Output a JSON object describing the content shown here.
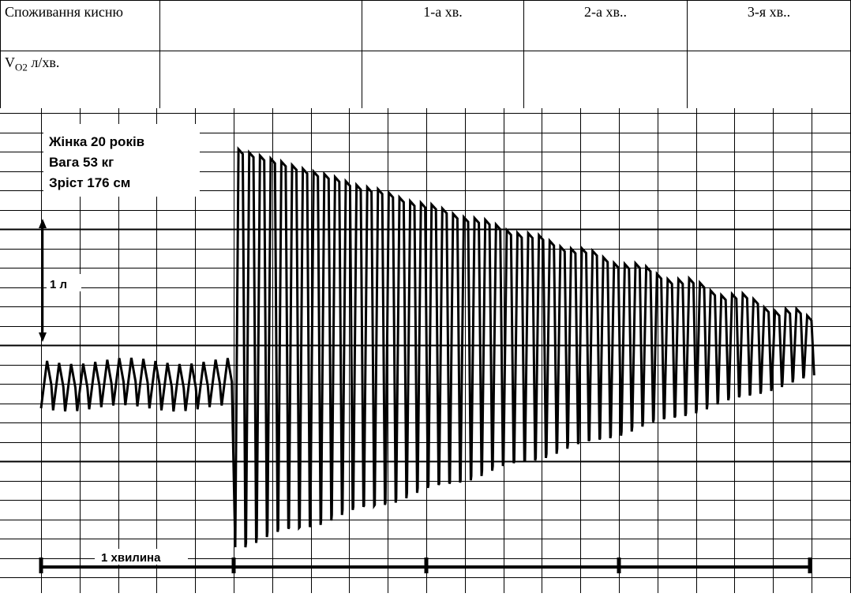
{
  "table": {
    "row1": {
      "label": "Споживання кисню",
      "col2": "",
      "col3": "1-а хв.",
      "col4": "2-а хв..",
      "col5": "3-я хв.."
    },
    "row2": {
      "label_main": "V",
      "label_sub": "O2",
      "label_unit": " л/хв.",
      "col2": "",
      "col3": "",
      "col4": "",
      "col5": ""
    }
  },
  "spirogram": {
    "subject_lines": [
      "Жінка 20 років",
      "Вага 53 кг",
      "Зріст 176 см"
    ],
    "volume_scale_label": "1 л",
    "time_scale_label": "1 хвилина",
    "minutes_shown": 4,
    "rest_breaths": 16,
    "exhale_breaths": 54,
    "colors": {
      "grid": "#000000",
      "trace": "#000000",
      "background": "#ffffff"
    }
  }
}
